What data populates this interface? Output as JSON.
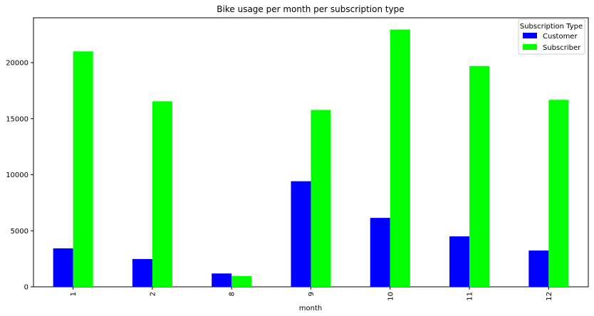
{
  "chart_data": {
    "type": "bar",
    "title": "Bike usage per month per subscription type",
    "xlabel": "month",
    "ylabel": "",
    "categories": [
      "1",
      "2",
      "8",
      "9",
      "10",
      "11",
      "12"
    ],
    "series": [
      {
        "name": "Customer",
        "color": "#0000ff",
        "values": [
          3430,
          2480,
          1190,
          9420,
          6150,
          4500,
          3240
        ]
      },
      {
        "name": "Subscriber",
        "color": "#00ff00",
        "values": [
          21000,
          16550,
          960,
          15780,
          22950,
          19700,
          16680
        ]
      }
    ],
    "ylim": [
      0,
      24000
    ],
    "yticks": [
      0,
      5000,
      10000,
      15000,
      20000
    ],
    "legend": {
      "title": "Subscription Type",
      "placement": "top-right"
    },
    "grid": false
  }
}
